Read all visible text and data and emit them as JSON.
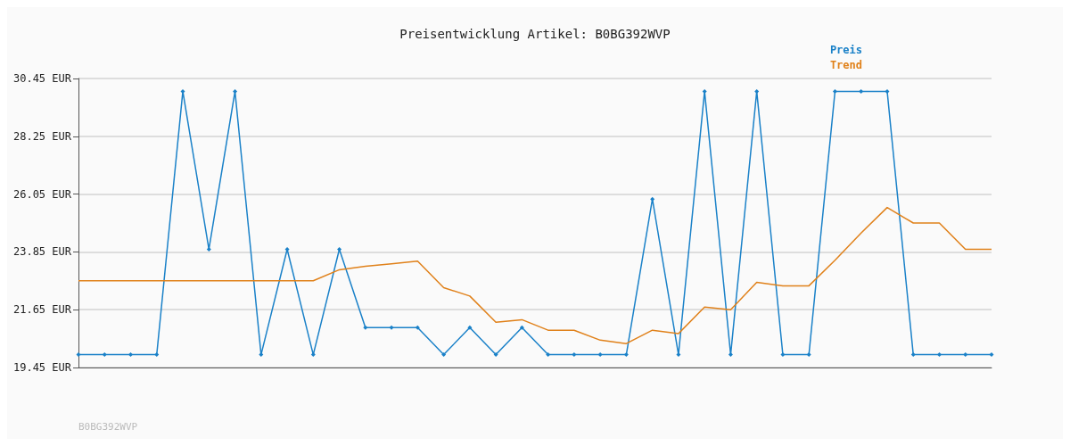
{
  "chart_data": {
    "type": "line",
    "title": "Preisentwicklung Artikel: B0BG392WVP",
    "annotations": [
      "B0BG392WVP"
    ],
    "categories": [
      null,
      null,
      null,
      null,
      null,
      null,
      null,
      null,
      null,
      null,
      null,
      null,
      null,
      null,
      null,
      null,
      null,
      null,
      null,
      null,
      null,
      null,
      null,
      null,
      null,
      null,
      null,
      null,
      null,
      null,
      null,
      null,
      null,
      null,
      null,
      null
    ],
    "series": [
      {
        "name": "Preis",
        "color": "#1a81c8",
        "marker": "diamond",
        "values": [
          19.94,
          19.94,
          19.94,
          19.94,
          29.96,
          23.95,
          29.96,
          19.94,
          23.95,
          19.94,
          23.95,
          20.97,
          20.97,
          20.97,
          19.94,
          20.97,
          19.94,
          20.97,
          19.94,
          19.94,
          19.94,
          19.94,
          25.86,
          19.94,
          29.96,
          19.94,
          29.96,
          19.94,
          19.94,
          29.96,
          29.96,
          29.96,
          19.94,
          19.94,
          19.94,
          19.94
        ]
      },
      {
        "name": "Trend",
        "color": "#e0811a",
        "marker": "none",
        "values": [
          22.75,
          22.75,
          22.75,
          22.75,
          22.75,
          22.75,
          22.75,
          22.75,
          22.75,
          22.75,
          23.17,
          23.3,
          23.4,
          23.5,
          22.49,
          22.17,
          21.17,
          21.27,
          20.87,
          20.87,
          20.49,
          20.36,
          20.87,
          20.74,
          21.75,
          21.65,
          22.69,
          22.56,
          22.56,
          23.53,
          24.57,
          25.54,
          24.95,
          24.95,
          23.95,
          23.95
        ]
      }
    ],
    "ylim": [
      19.45,
      30.45
    ],
    "yticks": [
      {
        "value": 19.45,
        "label": "19.45 EUR"
      },
      {
        "value": 21.65,
        "label": "21.65 EUR"
      },
      {
        "value": 23.85,
        "label": "23.85 EUR"
      },
      {
        "value": 26.05,
        "label": "26.05 EUR"
      },
      {
        "value": 28.25,
        "label": "28.25 EUR"
      },
      {
        "value": 30.45,
        "label": "30.45 EUR"
      }
    ],
    "grid": "y",
    "legend": "top right",
    "tick_labels": "y"
  }
}
